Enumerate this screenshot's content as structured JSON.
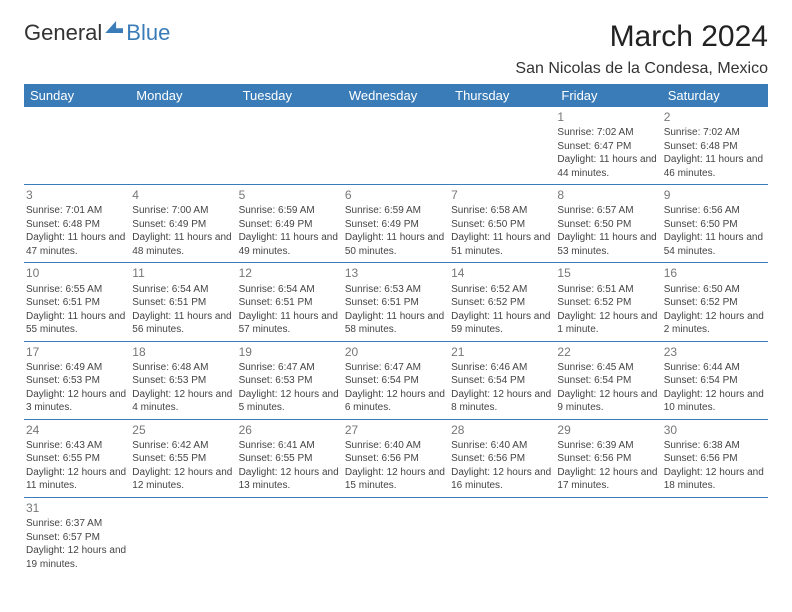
{
  "brand": {
    "part1": "General",
    "part2": "Blue"
  },
  "title": "March 2024",
  "location": "San Nicolas de la Condesa, Mexico",
  "colors": {
    "header_bg": "#3a7cb8",
    "header_text": "#ffffff",
    "border": "#3a7cb8",
    "daynum": "#777777",
    "body_text": "#444444",
    "brand_blue": "#3a7cb8"
  },
  "typography": {
    "title_size": 30,
    "location_size": 16,
    "th_size": 13,
    "cell_size": 10,
    "daynum_size": 12
  },
  "headers": [
    "Sunday",
    "Monday",
    "Tuesday",
    "Wednesday",
    "Thursday",
    "Friday",
    "Saturday"
  ],
  "weeks": [
    [
      null,
      null,
      null,
      null,
      null,
      {
        "n": "1",
        "sr": "Sunrise: 7:02 AM",
        "ss": "Sunset: 6:47 PM",
        "dl": "Daylight: 11 hours and 44 minutes."
      },
      {
        "n": "2",
        "sr": "Sunrise: 7:02 AM",
        "ss": "Sunset: 6:48 PM",
        "dl": "Daylight: 11 hours and 46 minutes."
      }
    ],
    [
      {
        "n": "3",
        "sr": "Sunrise: 7:01 AM",
        "ss": "Sunset: 6:48 PM",
        "dl": "Daylight: 11 hours and 47 minutes."
      },
      {
        "n": "4",
        "sr": "Sunrise: 7:00 AM",
        "ss": "Sunset: 6:49 PM",
        "dl": "Daylight: 11 hours and 48 minutes."
      },
      {
        "n": "5",
        "sr": "Sunrise: 6:59 AM",
        "ss": "Sunset: 6:49 PM",
        "dl": "Daylight: 11 hours and 49 minutes."
      },
      {
        "n": "6",
        "sr": "Sunrise: 6:59 AM",
        "ss": "Sunset: 6:49 PM",
        "dl": "Daylight: 11 hours and 50 minutes."
      },
      {
        "n": "7",
        "sr": "Sunrise: 6:58 AM",
        "ss": "Sunset: 6:50 PM",
        "dl": "Daylight: 11 hours and 51 minutes."
      },
      {
        "n": "8",
        "sr": "Sunrise: 6:57 AM",
        "ss": "Sunset: 6:50 PM",
        "dl": "Daylight: 11 hours and 53 minutes."
      },
      {
        "n": "9",
        "sr": "Sunrise: 6:56 AM",
        "ss": "Sunset: 6:50 PM",
        "dl": "Daylight: 11 hours and 54 minutes."
      }
    ],
    [
      {
        "n": "10",
        "sr": "Sunrise: 6:55 AM",
        "ss": "Sunset: 6:51 PM",
        "dl": "Daylight: 11 hours and 55 minutes."
      },
      {
        "n": "11",
        "sr": "Sunrise: 6:54 AM",
        "ss": "Sunset: 6:51 PM",
        "dl": "Daylight: 11 hours and 56 minutes."
      },
      {
        "n": "12",
        "sr": "Sunrise: 6:54 AM",
        "ss": "Sunset: 6:51 PM",
        "dl": "Daylight: 11 hours and 57 minutes."
      },
      {
        "n": "13",
        "sr": "Sunrise: 6:53 AM",
        "ss": "Sunset: 6:51 PM",
        "dl": "Daylight: 11 hours and 58 minutes."
      },
      {
        "n": "14",
        "sr": "Sunrise: 6:52 AM",
        "ss": "Sunset: 6:52 PM",
        "dl": "Daylight: 11 hours and 59 minutes."
      },
      {
        "n": "15",
        "sr": "Sunrise: 6:51 AM",
        "ss": "Sunset: 6:52 PM",
        "dl": "Daylight: 12 hours and 1 minute."
      },
      {
        "n": "16",
        "sr": "Sunrise: 6:50 AM",
        "ss": "Sunset: 6:52 PM",
        "dl": "Daylight: 12 hours and 2 minutes."
      }
    ],
    [
      {
        "n": "17",
        "sr": "Sunrise: 6:49 AM",
        "ss": "Sunset: 6:53 PM",
        "dl": "Daylight: 12 hours and 3 minutes."
      },
      {
        "n": "18",
        "sr": "Sunrise: 6:48 AM",
        "ss": "Sunset: 6:53 PM",
        "dl": "Daylight: 12 hours and 4 minutes."
      },
      {
        "n": "19",
        "sr": "Sunrise: 6:47 AM",
        "ss": "Sunset: 6:53 PM",
        "dl": "Daylight: 12 hours and 5 minutes."
      },
      {
        "n": "20",
        "sr": "Sunrise: 6:47 AM",
        "ss": "Sunset: 6:54 PM",
        "dl": "Daylight: 12 hours and 6 minutes."
      },
      {
        "n": "21",
        "sr": "Sunrise: 6:46 AM",
        "ss": "Sunset: 6:54 PM",
        "dl": "Daylight: 12 hours and 8 minutes."
      },
      {
        "n": "22",
        "sr": "Sunrise: 6:45 AM",
        "ss": "Sunset: 6:54 PM",
        "dl": "Daylight: 12 hours and 9 minutes."
      },
      {
        "n": "23",
        "sr": "Sunrise: 6:44 AM",
        "ss": "Sunset: 6:54 PM",
        "dl": "Daylight: 12 hours and 10 minutes."
      }
    ],
    [
      {
        "n": "24",
        "sr": "Sunrise: 6:43 AM",
        "ss": "Sunset: 6:55 PM",
        "dl": "Daylight: 12 hours and 11 minutes."
      },
      {
        "n": "25",
        "sr": "Sunrise: 6:42 AM",
        "ss": "Sunset: 6:55 PM",
        "dl": "Daylight: 12 hours and 12 minutes."
      },
      {
        "n": "26",
        "sr": "Sunrise: 6:41 AM",
        "ss": "Sunset: 6:55 PM",
        "dl": "Daylight: 12 hours and 13 minutes."
      },
      {
        "n": "27",
        "sr": "Sunrise: 6:40 AM",
        "ss": "Sunset: 6:56 PM",
        "dl": "Daylight: 12 hours and 15 minutes."
      },
      {
        "n": "28",
        "sr": "Sunrise: 6:40 AM",
        "ss": "Sunset: 6:56 PM",
        "dl": "Daylight: 12 hours and 16 minutes."
      },
      {
        "n": "29",
        "sr": "Sunrise: 6:39 AM",
        "ss": "Sunset: 6:56 PM",
        "dl": "Daylight: 12 hours and 17 minutes."
      },
      {
        "n": "30",
        "sr": "Sunrise: 6:38 AM",
        "ss": "Sunset: 6:56 PM",
        "dl": "Daylight: 12 hours and 18 minutes."
      }
    ],
    [
      {
        "n": "31",
        "sr": "Sunrise: 6:37 AM",
        "ss": "Sunset: 6:57 PM",
        "dl": "Daylight: 12 hours and 19 minutes."
      },
      null,
      null,
      null,
      null,
      null,
      null
    ]
  ]
}
